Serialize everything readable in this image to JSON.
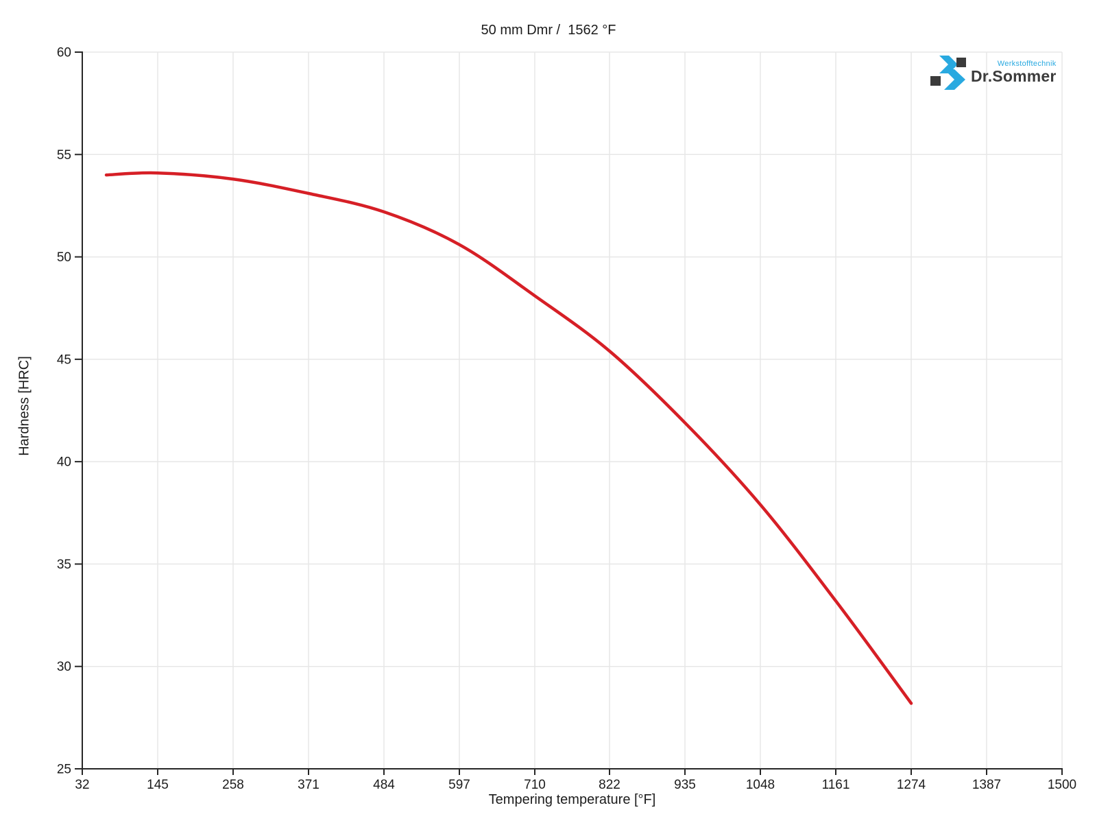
{
  "chart_data": {
    "type": "line",
    "title": "50 mm Dmr /  1562 °F",
    "xlabel": "Tempering temperature [°F]",
    "ylabel": "Hardness [HRC]",
    "xlim": [
      32,
      1500
    ],
    "ylim": [
      25,
      60
    ],
    "x_ticks": [
      32,
      145,
      258,
      371,
      484,
      597,
      710,
      822,
      935,
      1048,
      1161,
      1274,
      1387,
      1500
    ],
    "y_ticks": [
      25,
      30,
      35,
      40,
      45,
      50,
      55,
      60
    ],
    "grid": true,
    "legend": false,
    "series": [
      {
        "color": "#d61f26",
        "x": [
          68,
          145,
          258,
          371,
          484,
          597,
          710,
          822,
          935,
          1048,
          1161,
          1274
        ],
        "y": [
          54.0,
          54.1,
          53.8,
          53.1,
          52.2,
          50.6,
          48.1,
          45.4,
          41.9,
          37.9,
          33.2,
          28.2
        ]
      }
    ]
  },
  "colors": {
    "curve": "#d61f26",
    "grid": "#e7e7e7",
    "axis": "#262626",
    "text": "#1c1c1c",
    "background": "#ffffff"
  },
  "logo": {
    "title": "Dr.Sommer",
    "subtitle": "Werkstofftechnik",
    "accent_color": "#29a9e0",
    "dark_color": "#3b3b3b"
  }
}
